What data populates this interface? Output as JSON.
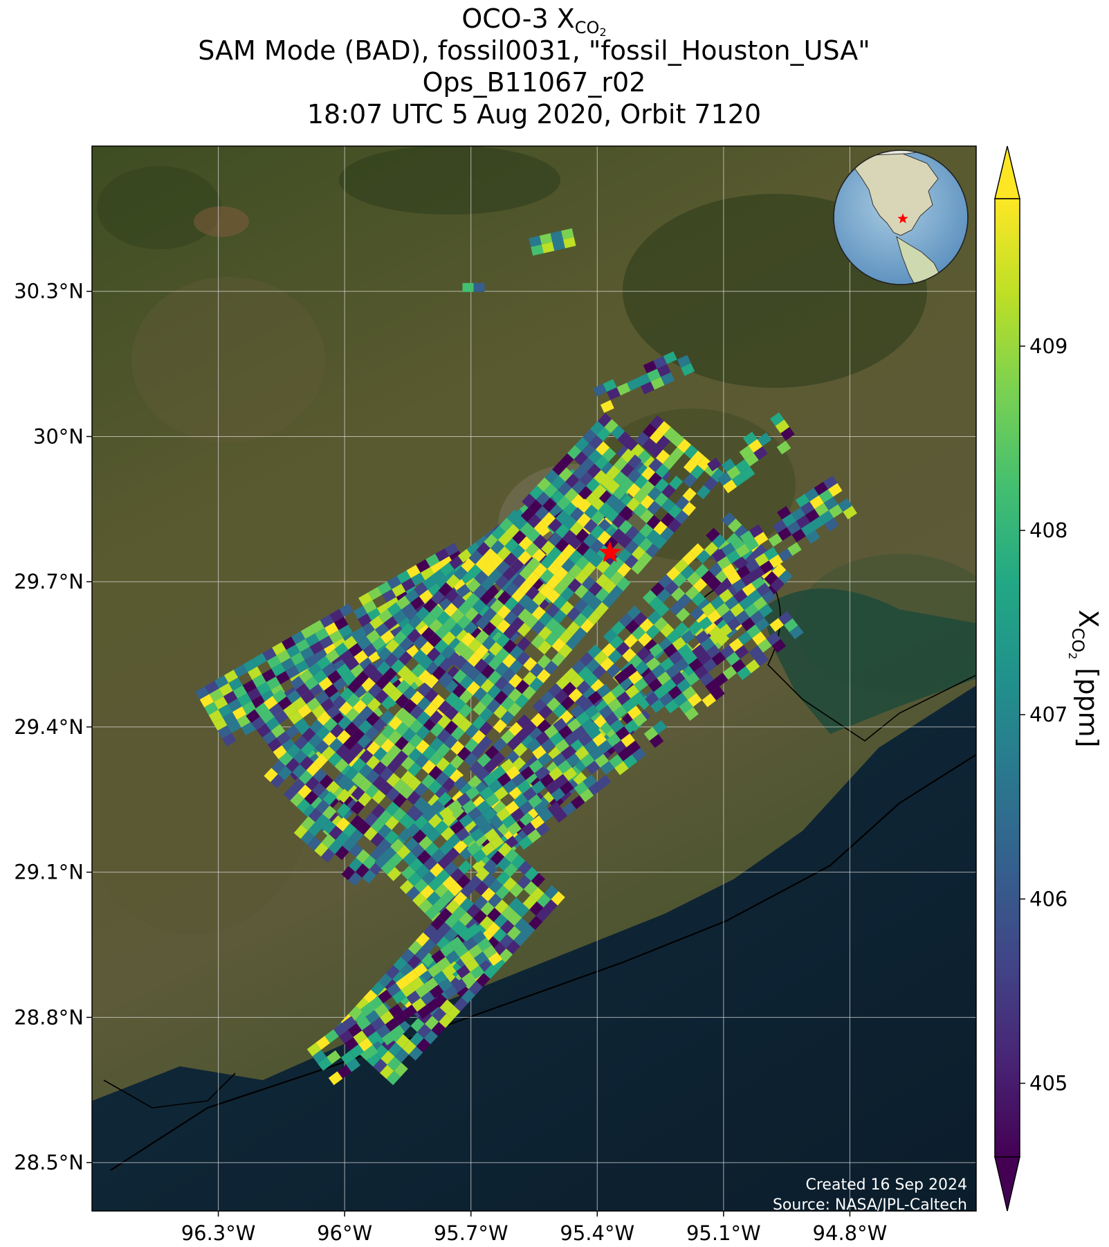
{
  "title": {
    "line1_main": "OCO-3 X",
    "line1_sub": "CO",
    "line1_sub2": "2",
    "line2": "SAM Mode (BAD), fossil0031, \"fossil_Houston_USA\"",
    "line3": "Ops_B11067_r02",
    "line4": "18:07 UTC 5 Aug 2020, Orbit 7120"
  },
  "map": {
    "lon_range": [
      -96.6,
      -94.5
    ],
    "lat_range": [
      28.4,
      30.6
    ],
    "lon_ticks": [
      {
        "value": -96.3,
        "label": "96.3°W"
      },
      {
        "value": -96.0,
        "label": "96°W"
      },
      {
        "value": -95.7,
        "label": "95.7°W"
      },
      {
        "value": -95.4,
        "label": "95.4°W"
      },
      {
        "value": -95.1,
        "label": "95.1°W"
      },
      {
        "value": -94.8,
        "label": "94.8°W"
      }
    ],
    "lat_ticks": [
      {
        "value": 30.3,
        "label": "30.3°N"
      },
      {
        "value": 30.0,
        "label": "30°N"
      },
      {
        "value": 29.7,
        "label": "29.7°N"
      },
      {
        "value": 29.4,
        "label": "29.4°N"
      },
      {
        "value": 29.1,
        "label": "29.1°N"
      },
      {
        "value": 28.8,
        "label": "28.8°N"
      },
      {
        "value": 28.5,
        "label": "28.5°N"
      }
    ],
    "target": {
      "lon": -95.37,
      "lat": 29.76,
      "color": "#ff0000"
    },
    "colors": {
      "land": "#4f5a2c",
      "ocean": "#0d1f2e",
      "grid": "#d9d9d9"
    },
    "credit_line1": "Created 16 Sep 2024",
    "credit_line2": "Source: NASA/JPL-Caltech"
  },
  "colorbar": {
    "min": 404.6,
    "max": 409.8,
    "ticks": [
      405,
      406,
      407,
      408,
      409
    ],
    "label_main": "X",
    "label_sub": "CO",
    "label_sub2": "2",
    "label_unit": " [ppm]",
    "extend": "both",
    "colormap": "viridis"
  }
}
